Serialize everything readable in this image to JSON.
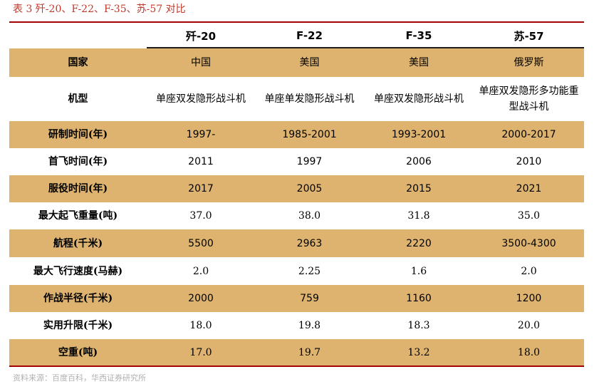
{
  "caption": "表 3 歼-20、F-22、F-35、苏-57 对比",
  "headers": [
    "",
    "歼-20",
    "F-22",
    "F-35",
    "苏-57"
  ],
  "rows": [
    {
      "label": "国家",
      "values": [
        "中国",
        "美国",
        "美国",
        "俄罗斯"
      ]
    },
    {
      "label": "机型",
      "values": [
        "单座双发隐形战斗机",
        "单座单发隐形战斗机",
        "单座双发隐形战斗机",
        "单座双发隐形多功能重型战斗机"
      ]
    },
    {
      "label": "研制时间(年)",
      "values": [
        "1997-",
        "1985-2001",
        "1993-2001",
        "2000-2017"
      ]
    },
    {
      "label": "首飞时间(年)",
      "values": [
        "2011",
        "1997",
        "2006",
        "2010"
      ]
    },
    {
      "label": "服役时间(年)",
      "values": [
        "2017",
        "2005",
        "2015",
        "2021"
      ]
    },
    {
      "label": "最大起飞重量(吨)",
      "values": [
        "37.0",
        "38.0",
        "31.8",
        "35.0"
      ]
    },
    {
      "label": "航程(千米)",
      "values": [
        "5500",
        "2963",
        "2220",
        "3500-4300"
      ]
    },
    {
      "label": "最大飞行速度(马赫)",
      "values": [
        "2.0",
        "2.25",
        "1.6",
        "2.0"
      ]
    },
    {
      "label": "作战半径(千米)",
      "values": [
        "2000",
        "759",
        "1160",
        "1200"
      ]
    },
    {
      "label": "实用升限(千米)",
      "values": [
        "18.0",
        "19.8",
        "18.3",
        "20.0"
      ]
    },
    {
      "label": "空重(吨)",
      "values": [
        "17.0",
        "19.7",
        "13.2",
        "18.0"
      ]
    }
  ],
  "source": "资料来源：百度百科，华西证券研究所",
  "colors": {
    "accent_red": "#a40000",
    "caption_red": "#c0392b",
    "tan": "#ddb36f"
  }
}
